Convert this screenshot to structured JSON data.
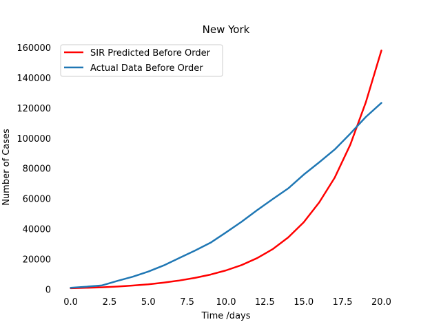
{
  "chart_data": {
    "type": "line",
    "title": "New York",
    "xlabel": "Time /days",
    "ylabel": "Number of Cases",
    "xlim": [
      -1.0,
      21.0
    ],
    "ylim": [
      -3000,
      165000
    ],
    "xticks": [
      0.0,
      2.5,
      5.0,
      7.5,
      10.0,
      12.5,
      15.0,
      17.5,
      20.0
    ],
    "xtick_labels": [
      "0.0",
      "2.5",
      "5.0",
      "7.5",
      "10.0",
      "12.5",
      "15.0",
      "17.5",
      "20.0"
    ],
    "yticks": [
      0,
      20000,
      40000,
      60000,
      80000,
      100000,
      120000,
      140000,
      160000
    ],
    "ytick_labels": [
      "0",
      "20000",
      "40000",
      "60000",
      "80000",
      "100000",
      "120000",
      "140000",
      "160000"
    ],
    "grid": false,
    "legend_position": "top-left",
    "x": [
      0,
      1,
      2,
      3,
      4,
      5,
      6,
      7,
      8,
      9,
      10,
      11,
      12,
      13,
      14,
      15,
      16,
      17,
      18,
      19,
      20
    ],
    "series": [
      {
        "name": "SIR Predicted Before Order",
        "color": "#ff0000",
        "values": [
          700,
          950,
          1300,
          1800,
          2450,
          3300,
          4400,
          5800,
          7500,
          9700,
          12500,
          16000,
          20600,
          26500,
          34300,
          44300,
          57500,
          73900,
          95700,
          123700,
          158000
        ]
      },
      {
        "name": "Actual Data Before Order",
        "color": "#1f77b4",
        "values": [
          1000,
          1700,
          2500,
          5500,
          8300,
          11700,
          15800,
          20700,
          25600,
          30800,
          37600,
          44600,
          52300,
          59600,
          66700,
          75800,
          84000,
          92500,
          103000,
          114000,
          123300
        ]
      }
    ]
  }
}
